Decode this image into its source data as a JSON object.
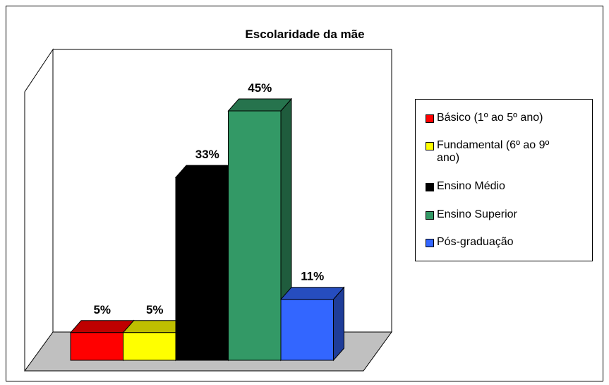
{
  "chart_data": {
    "type": "bar3d",
    "title": "Escolaridade da mãe",
    "categories": [
      "Básico (1º ao 5º ano)",
      "Fundamental (6º ao 9º ano)",
      "Ensino Médio",
      "Ensino Superior",
      "Pós-graduação"
    ],
    "values": [
      5,
      5,
      33,
      45,
      11
    ],
    "value_labels": [
      "5%",
      "5%",
      "33%",
      "45%",
      "11%"
    ],
    "colors": [
      "#ff0000",
      "#ffff00",
      "#000000",
      "#339966",
      "#3366ff"
    ],
    "legend": "right"
  }
}
